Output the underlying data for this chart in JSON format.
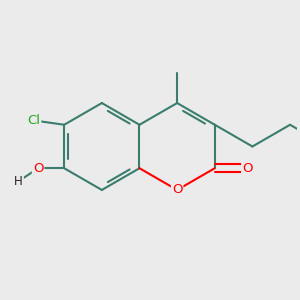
{
  "bg_color": "#ebebeb",
  "bond_color": "#3a7d6e",
  "bond_width": 1.5,
  "atom_colors": {
    "O": "#ff0000",
    "Cl": "#22aa22",
    "H": "#222222",
    "C": "#3a7d6e"
  },
  "figsize": [
    3.0,
    3.0
  ],
  "dpi": 100
}
